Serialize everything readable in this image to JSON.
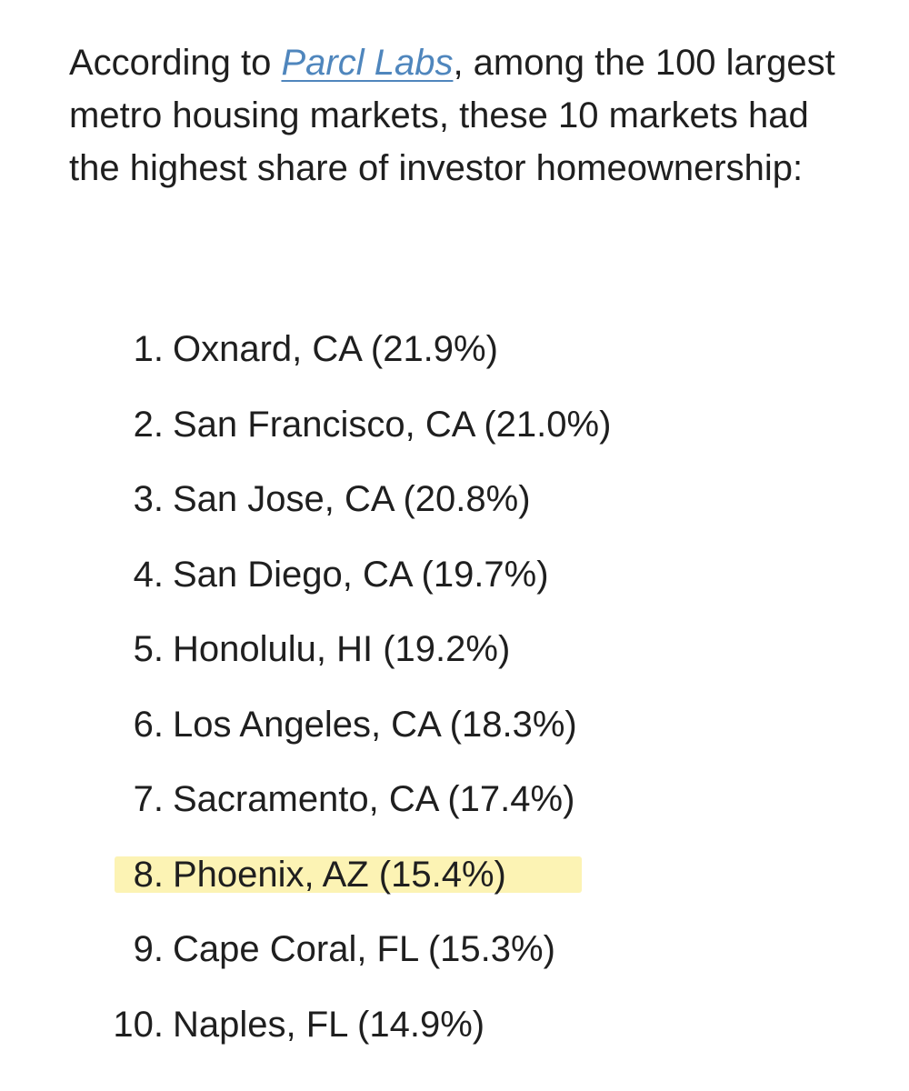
{
  "intro": {
    "before_link": "According to ",
    "link_text": "Parcl Labs",
    "after_link": ", among the 100 largest metro housing markets, these 10 markets had the highest share of investor homeownership:"
  },
  "highlight_color": "#fcf3b4",
  "link_color": "#4f86bd",
  "markets": [
    {
      "rank": "1.",
      "text": "Oxnard, CA (21.9%)"
    },
    {
      "rank": "2.",
      "text": "San Francisco, CA (21.0%)"
    },
    {
      "rank": "3.",
      "text": "San Jose, CA (20.8%)"
    },
    {
      "rank": "4.",
      "text": "San Diego, CA (19.7%)"
    },
    {
      "rank": "5.",
      "text": "Honolulu, HI (19.2%)"
    },
    {
      "rank": "6.",
      "text": "Los Angeles, CA (18.3%)"
    },
    {
      "rank": "7.",
      "text": "Sacramento, CA (17.4%)"
    },
    {
      "rank": "8.",
      "text": "Phoenix, AZ (15.4%)",
      "highlighted": true
    },
    {
      "rank": "9.",
      "text": "Cape Coral, FL (15.3%)"
    },
    {
      "rank": "10.",
      "text": "Naples, FL (14.9%)"
    }
  ]
}
